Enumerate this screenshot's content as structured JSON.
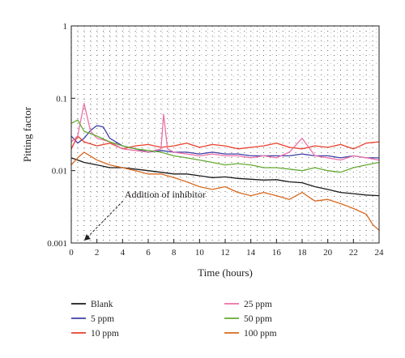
{
  "chart_data": {
    "type": "line",
    "title": "",
    "xlabel": "Time (hours)",
    "ylabel": "Pitting factor",
    "xlim": [
      0,
      24
    ],
    "ylim": [
      0.001,
      1
    ],
    "yscale": "log",
    "grid": "dotted",
    "x_ticks": [
      "0",
      "2",
      "4",
      "6",
      "8",
      "10",
      "12",
      "14",
      "16",
      "18",
      "20",
      "22",
      "24"
    ],
    "y_ticks": [
      "0.001",
      "0.01",
      "0.1",
      "1"
    ],
    "annotation": {
      "text": "Addition of inhibitor",
      "x": 1,
      "y": 0.001
    },
    "legend_position": "bottom",
    "series": [
      {
        "name": "Blank",
        "color": "#1a1a1a",
        "x": [
          0,
          0.5,
          1,
          2,
          3,
          4,
          5,
          6,
          7,
          8,
          9,
          10,
          11,
          12,
          13,
          14,
          15,
          16,
          17,
          18,
          19,
          20,
          21,
          22,
          23,
          24
        ],
        "y": [
          0.015,
          0.014,
          0.013,
          0.012,
          0.011,
          0.011,
          0.0105,
          0.01,
          0.0095,
          0.009,
          0.009,
          0.0085,
          0.008,
          0.0082,
          0.0078,
          0.0076,
          0.0074,
          0.0075,
          0.007,
          0.0068,
          0.006,
          0.0055,
          0.005,
          0.0048,
          0.0046,
          0.0045
        ]
      },
      {
        "name": "5 ppm",
        "color": "#3f3fa5",
        "x": [
          0,
          0.5,
          1,
          1.5,
          2,
          2.5,
          3,
          4,
          5,
          6,
          7,
          8,
          9,
          10,
          11,
          12,
          13,
          14,
          15,
          16,
          17,
          18,
          19,
          20,
          21,
          22,
          23,
          24
        ],
        "y": [
          0.03,
          0.024,
          0.028,
          0.036,
          0.042,
          0.04,
          0.028,
          0.022,
          0.02,
          0.018,
          0.019,
          0.018,
          0.018,
          0.017,
          0.018,
          0.017,
          0.017,
          0.016,
          0.016,
          0.016,
          0.016,
          0.017,
          0.016,
          0.016,
          0.015,
          0.016,
          0.015,
          0.015
        ]
      },
      {
        "name": "10 ppm",
        "color": "#e8412c",
        "x": [
          0,
          0.5,
          1,
          2,
          3,
          4,
          5,
          6,
          7,
          8,
          9,
          10,
          11,
          12,
          13,
          14,
          15,
          16,
          17,
          18,
          19,
          20,
          21,
          22,
          23,
          24
        ],
        "y": [
          0.02,
          0.03,
          0.025,
          0.022,
          0.024,
          0.02,
          0.022,
          0.023,
          0.021,
          0.022,
          0.024,
          0.021,
          0.023,
          0.022,
          0.02,
          0.021,
          0.022,
          0.024,
          0.021,
          0.02,
          0.022,
          0.021,
          0.023,
          0.02,
          0.024,
          0.025
        ]
      },
      {
        "name": "25 ppm",
        "color": "#ec6fa7",
        "x": [
          0,
          0.5,
          1,
          1.5,
          2,
          3,
          4,
          5,
          6,
          7,
          7.2,
          7.5,
          8,
          9,
          10,
          11,
          12,
          13,
          14,
          15,
          16,
          17,
          18,
          19,
          20,
          21,
          22,
          23,
          24
        ],
        "y": [
          0.025,
          0.03,
          0.085,
          0.035,
          0.028,
          0.025,
          0.02,
          0.019,
          0.018,
          0.02,
          0.06,
          0.02,
          0.018,
          0.017,
          0.016,
          0.017,
          0.016,
          0.016,
          0.015,
          0.016,
          0.015,
          0.018,
          0.028,
          0.016,
          0.015,
          0.014,
          0.016,
          0.015,
          0.014
        ]
      },
      {
        "name": "50 ppm",
        "color": "#66aa33",
        "x": [
          0,
          0.5,
          1,
          2,
          3,
          4,
          5,
          6,
          7,
          8,
          9,
          10,
          11,
          12,
          13,
          14,
          15,
          16,
          17,
          18,
          19,
          20,
          21,
          22,
          23,
          24
        ],
        "y": [
          0.045,
          0.05,
          0.035,
          0.03,
          0.025,
          0.022,
          0.02,
          0.019,
          0.018,
          0.016,
          0.015,
          0.014,
          0.013,
          0.012,
          0.0125,
          0.012,
          0.011,
          0.011,
          0.0105,
          0.01,
          0.011,
          0.01,
          0.0095,
          0.011,
          0.012,
          0.013
        ]
      },
      {
        "name": "100 ppm",
        "color": "#d86a20",
        "x": [
          0,
          0.5,
          1,
          2,
          3,
          4,
          5,
          6,
          7,
          8,
          9,
          10,
          11,
          12,
          13,
          14,
          15,
          16,
          17,
          18,
          19,
          20,
          21,
          22,
          23,
          23.5,
          24
        ],
        "y": [
          0.012,
          0.015,
          0.018,
          0.014,
          0.012,
          0.011,
          0.01,
          0.009,
          0.009,
          0.008,
          0.007,
          0.006,
          0.0055,
          0.006,
          0.005,
          0.0045,
          0.005,
          0.0045,
          0.004,
          0.005,
          0.0038,
          0.004,
          0.0035,
          0.003,
          0.0025,
          0.0018,
          0.0015
        ]
      }
    ]
  }
}
